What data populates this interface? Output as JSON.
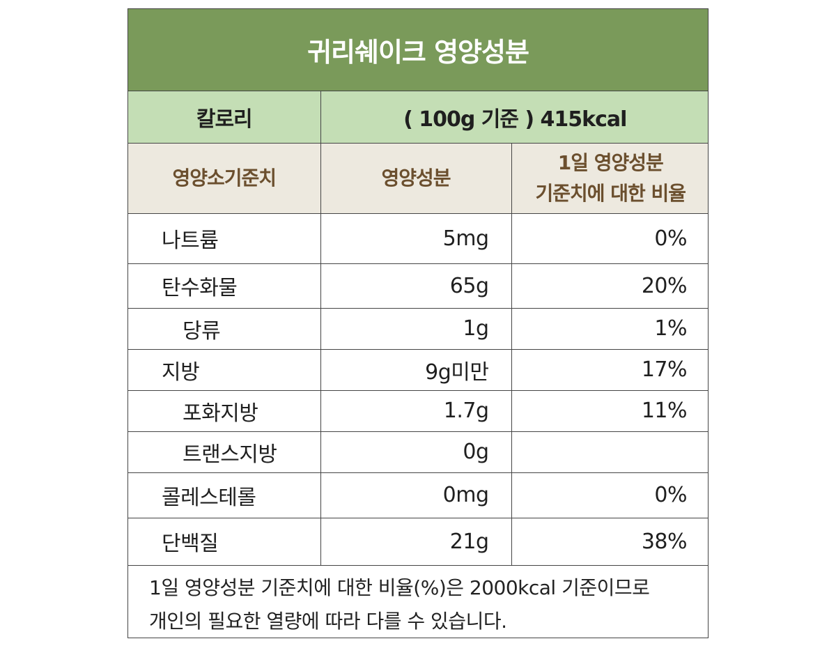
{
  "title": "귀리쉐이크 영양성분",
  "calorie": {
    "label": "칼로리",
    "value": "( 100g 기준 ) 415kcal"
  },
  "header": {
    "col1": "영양소기준치",
    "col2": "영양성분",
    "col3_line1": "1일 영양성분",
    "col3_line2": "기준치에 대한 비율"
  },
  "rows": [
    {
      "name": "나트륨",
      "amount": "5mg",
      "percent": "0%"
    },
    {
      "name": "탄수화물",
      "amount": "65g",
      "percent": "20%"
    },
    {
      "name": "당류",
      "amount": "1g",
      "percent": "1%"
    },
    {
      "name": "지방",
      "amount": "9g미만",
      "percent": "17%"
    },
    {
      "name": "포화지방",
      "amount": "1.7g",
      "percent": "11%"
    },
    {
      "name": "트랜스지방",
      "amount": "0g",
      "percent": ""
    },
    {
      "name": "콜레스테롤",
      "amount": "0mg",
      "percent": "0%"
    },
    {
      "name": "단백질",
      "amount": "21g",
      "percent": "38%"
    }
  ],
  "note": {
    "line1": "1일 영양성분 기준치에 대한 비율(%)은 2000kcal 기준이므로",
    "line2": "개인의 필요한 열량에 따라 다를 수 있습니다."
  },
  "colors": {
    "title_bg": "#7a9a5a",
    "calorie_bg": "#c4deb5",
    "header_bg": "#ede9df",
    "header_text": "#6b4f2e",
    "border": "#444444"
  }
}
